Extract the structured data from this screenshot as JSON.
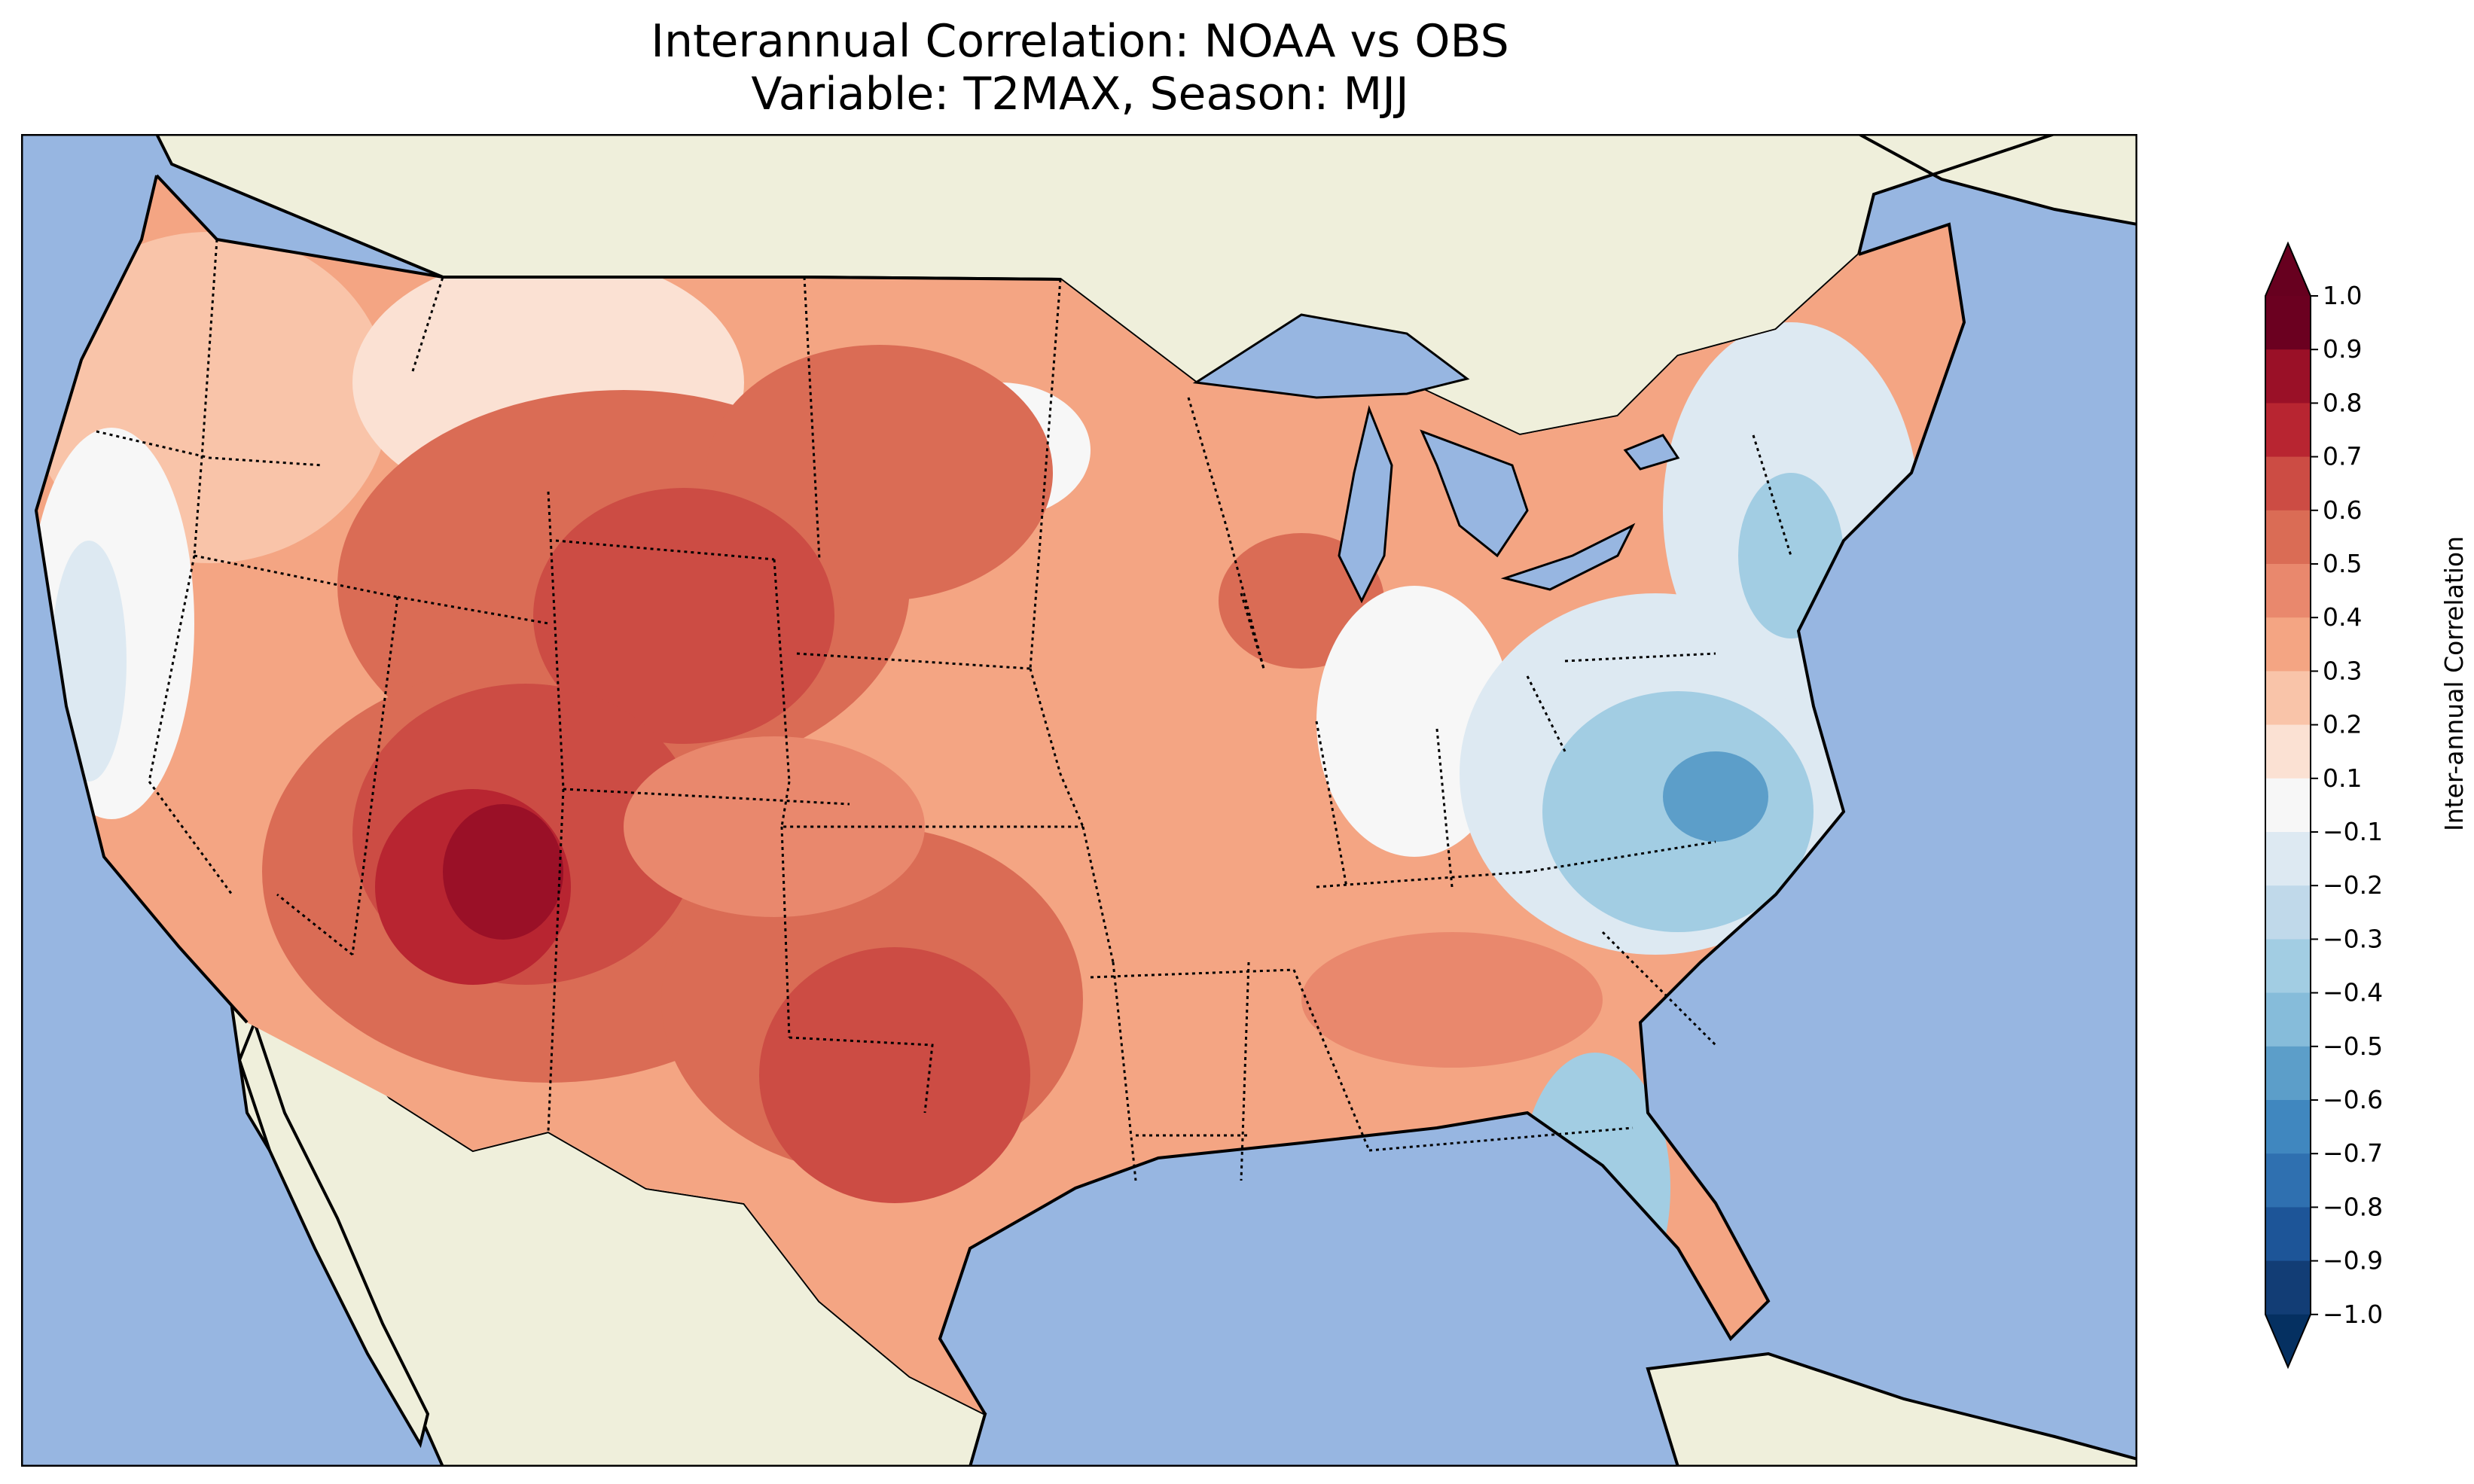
{
  "title": {
    "line1": "Interannual Correlation: NOAA vs OBS",
    "line2": "Variable: T2MAX, Season: MJJ"
  },
  "colors": {
    "ocean": "#97b6e1",
    "land_outside": "#efefdb",
    "border": "#000000"
  },
  "colorbar": {
    "label": "Inter-annual Correlation",
    "ticks": [
      "1.0",
      "0.9",
      "0.8",
      "0.7",
      "0.6",
      "0.5",
      "0.4",
      "0.3",
      "0.2",
      "0.1",
      "−0.1",
      "−0.2",
      "−0.3",
      "−0.4",
      "−0.5",
      "−0.6",
      "−0.7",
      "−0.8",
      "−0.9",
      "−1.0"
    ],
    "colors_top_to_bottom": [
      "#6b0020",
      "#9a1027",
      "#b82531",
      "#cc4c44",
      "#da6c55",
      "#e9886d",
      "#f4a583",
      "#f9c4a9",
      "#fbe1d3",
      "#f7f7f7",
      "#dde9f2",
      "#c0d9ea",
      "#a2cde3",
      "#86bcda",
      "#5c9ec9",
      "#4087bf",
      "#2f70b0",
      "#1d5598",
      "#123d75"
    ],
    "extend_top": "#67001f",
    "extend_bottom": "#053061"
  }
}
